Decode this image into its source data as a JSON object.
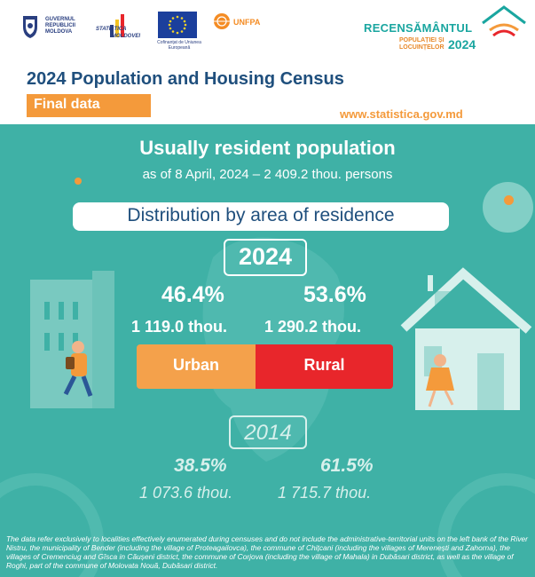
{
  "header": {
    "gov_logo_text": [
      "GUVERNUL",
      "REPUBLICII",
      "MOLDOVA"
    ],
    "stat_logo_text": [
      "STATISTICA",
      "MOLDOVEI"
    ],
    "eu_logo_text": "Cofinanțat de Uniunea Europeană",
    "unfpa_logo_text": "UNFPA",
    "census_brand": {
      "title": "RECENSĂMÂNTUL",
      "subtitle": "POPULAȚIEI ȘI LOCUINȚELOR",
      "year": "2024"
    },
    "title": "2024 Population and Housing Census",
    "badge": "Final data",
    "website": "www.statistica.gov.md"
  },
  "panel": {
    "heading": "Usually resident population",
    "subheading": "as of 8 April, 2024 – 2 409.2 thou. persons",
    "distribution_label": "Distribution by area of residence",
    "year_current": "2024",
    "urban_pct_2024": "46.4%",
    "rural_pct_2024": "53.6%",
    "urban_val_2024": "1 119.0 thou.",
    "rural_val_2024": "1 290.2 thou.",
    "urban_label": "Urban",
    "rural_label": "Rural",
    "urban_share_2024": 46.4,
    "rural_share_2024": 53.6,
    "year_previous": "2014",
    "urban_pct_2014": "38.5%",
    "rural_pct_2014": "61.5%",
    "urban_val_2014": "1 073.6 thou.",
    "rural_val_2014": "1 715.7 thou.",
    "note": "The data refer exclusively to localities effectively enumerated during censuses and do not include the administrative-territorial units on the left bank of the River Nistru, the municipality of Bender (including the village of Proteagailovca), the commune of Chițcani (including the villages of Merenești and Zahorna), the villages of Cremenciug and Gîsca in Căușeni district, the commune of Corjova (including the village of Mahala) in Dubăsari district, as well as the village of Roghi, part of the commune of Molovata Nouă, Dubăsari district."
  },
  "colors": {
    "teal": "#3fb1a6",
    "orange": "#f49a3b",
    "urban": "#f4a14b",
    "rural": "#e8262b",
    "title_blue": "#1f4f7d"
  }
}
